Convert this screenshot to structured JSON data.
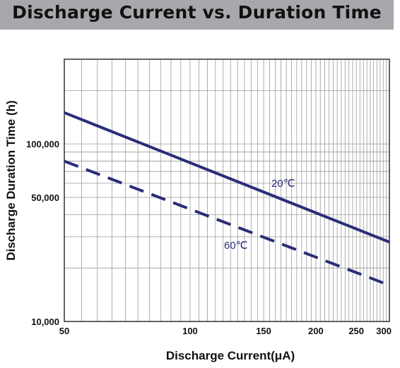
{
  "header": {
    "title": "Discharge Current vs. Duration Time"
  },
  "chart_data": {
    "type": "line",
    "title": "Discharge Current vs. Duration Time",
    "xlabel": "Discharge Current(μA)",
    "ylabel": "Discharge Duration Time (h)",
    "x_scale": "log",
    "y_scale": "log",
    "xlim": [
      50,
      300
    ],
    "ylim": [
      10000,
      300000
    ],
    "x_tick_labels": [
      "50",
      "100",
      "150",
      "200",
      "250",
      "300"
    ],
    "x_tick_values": [
      50,
      100,
      150,
      200,
      250,
      300
    ],
    "y_tick_labels": [
      "10,000",
      "50,000",
      "100,000"
    ],
    "y_tick_values": [
      10000,
      50000,
      100000
    ],
    "grid": true,
    "legend": "none",
    "series": [
      {
        "name": "20℃",
        "x": [
          50,
          300
        ],
        "y": [
          150000,
          28000
        ],
        "color": "#2a2d78",
        "style": "solid"
      },
      {
        "name": "60℃",
        "x": [
          50,
          300
        ],
        "y": [
          80000,
          16000
        ],
        "color": "#2a2d78",
        "style": "dashed"
      }
    ]
  }
}
